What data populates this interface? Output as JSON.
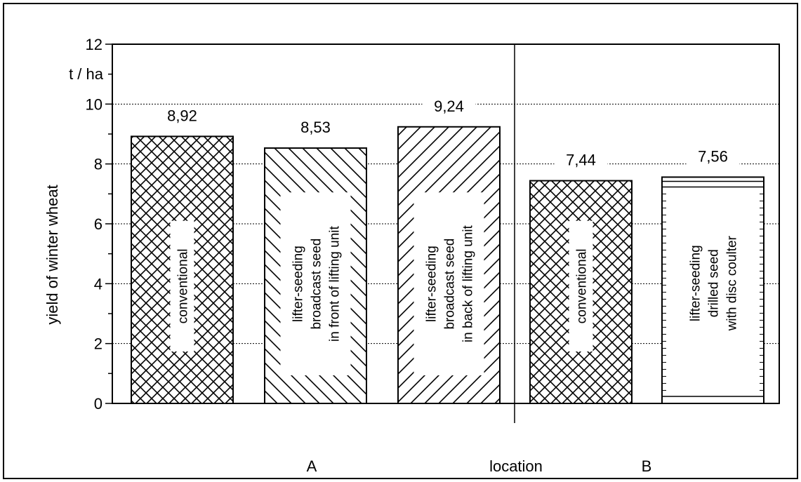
{
  "chart_data": {
    "type": "bar",
    "ylabel": "yield of winter wheat",
    "yunit": "t / ha",
    "ylim": [
      0,
      12
    ],
    "yticks": [
      "0",
      "2",
      "4",
      "6",
      "8",
      "10",
      "12"
    ],
    "grid": true,
    "grid_style": "dotted horizontal",
    "xlabel": "location",
    "groups": [
      {
        "location": "A",
        "bars": [
          {
            "label_lines": [
              "conventional"
            ],
            "value": 8.92,
            "value_label": "8,92",
            "pattern": "crosshatch"
          },
          {
            "label_lines": [
              "lifter-seeding",
              "broadcast seed",
              "in front of lifting unit"
            ],
            "value": 8.53,
            "value_label": "8,53",
            "pattern": "hatch-back"
          },
          {
            "label_lines": [
              "lifter-seeding",
              "broadcast seed",
              "in back of lifting unit"
            ],
            "value": 9.24,
            "value_label": "9,24",
            "pattern": "hatch-forward"
          }
        ]
      },
      {
        "location": "B",
        "bars": [
          {
            "label_lines": [
              "conventional"
            ],
            "value": 7.44,
            "value_label": "7,44",
            "pattern": "crosshatch"
          },
          {
            "label_lines": [
              "lifter-seeding",
              "drilled seed",
              "with disc coulter"
            ],
            "value": 7.56,
            "value_label": "7,56",
            "pattern": "horizontal-lines"
          }
        ]
      }
    ],
    "colors": {
      "ink": "#000000",
      "fill": "#ffffff"
    }
  }
}
